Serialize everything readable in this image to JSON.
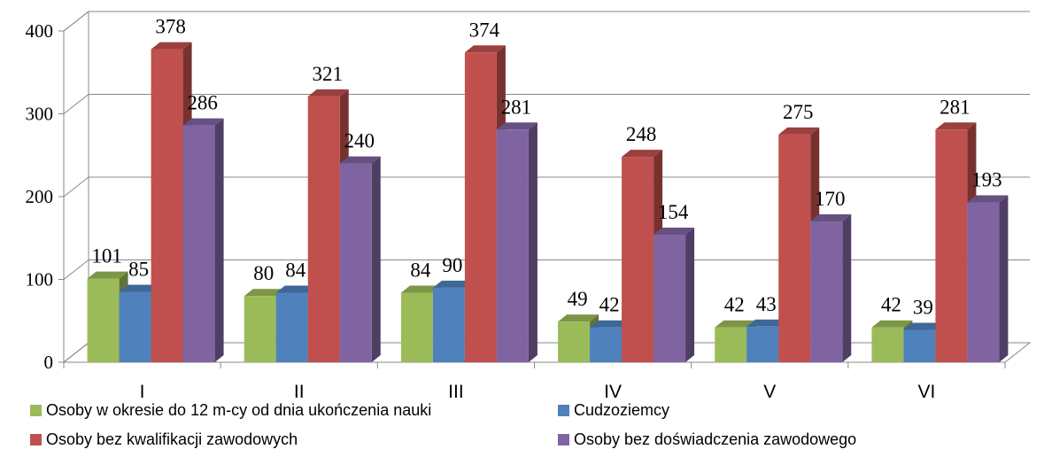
{
  "chart_data": {
    "type": "bar3d",
    "categories": [
      "I",
      "II",
      "III",
      "IV",
      "V",
      "VI"
    ],
    "series": [
      {
        "name": "Osoby w okresie do 12 m-cy od dnia ukończenia nauki",
        "color": "#9bbb59",
        "values": [
          101,
          80,
          84,
          49,
          42,
          42
        ]
      },
      {
        "name": "Cudzoziemcy",
        "color": "#4f81bd",
        "values": [
          85,
          84,
          90,
          42,
          43,
          39
        ]
      },
      {
        "name": "Osoby bez kwalifikacji zawodowych",
        "color": "#c0504d",
        "values": [
          378,
          321,
          374,
          248,
          275,
          281
        ]
      },
      {
        "name": "Osoby bez doświadczenia zawodowego",
        "color": "#8064a2",
        "values": [
          286,
          240,
          281,
          154,
          170,
          193
        ]
      }
    ],
    "ylim": [
      0,
      400
    ],
    "yticks": [
      0,
      100,
      200,
      300,
      400
    ],
    "grid": true
  }
}
